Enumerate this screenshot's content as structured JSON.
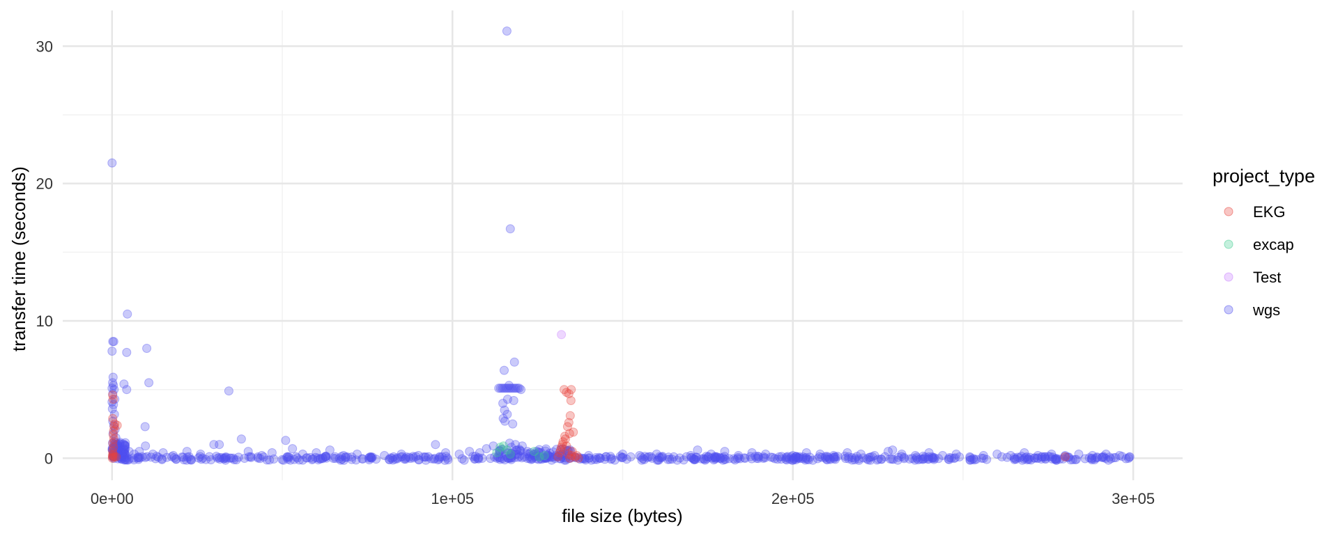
{
  "colors": {
    "EKG": "#E8423A",
    "excap": "#3DCC8E",
    "Test": "#C77CFF",
    "wgs": "#4F4FF0",
    "grid_major": "#E6E6E6",
    "grid_minor": "#F2F2F2",
    "text": "#333333"
  },
  "chart_data": {
    "type": "scatter",
    "xlabel": "file size (bytes)",
    "ylabel": "transfer time (seconds)",
    "xlim": [
      -14500,
      314500
    ],
    "ylim": [
      -1.6,
      32.6
    ],
    "x_ticks": [
      {
        "value": 0,
        "label": "0e+00"
      },
      {
        "value": 100000,
        "label": "1e+05"
      },
      {
        "value": 200000,
        "label": "2e+05"
      },
      {
        "value": 300000,
        "label": "3e+05"
      }
    ],
    "y_ticks": [
      {
        "value": 0,
        "label": "0"
      },
      {
        "value": 10,
        "label": "10"
      },
      {
        "value": 20,
        "label": "20"
      },
      {
        "value": 30,
        "label": "30"
      }
    ],
    "x_minor": [
      50000,
      150000,
      250000
    ],
    "y_minor": [
      5,
      15,
      25
    ],
    "grid": true,
    "legend": {
      "title": "project_type",
      "position": "right"
    },
    "series": [
      {
        "name": "EKG",
        "points": [
          [
            100,
            0.0
          ],
          [
            200,
            0.1
          ],
          [
            300,
            0.3
          ],
          [
            150,
            0.5
          ],
          [
            400,
            0.8
          ],
          [
            250,
            1.1
          ],
          [
            500,
            1.4
          ],
          [
            350,
            1.7
          ],
          [
            450,
            2.0
          ],
          [
            600,
            2.3
          ],
          [
            800,
            2.5
          ],
          [
            200,
            2.9
          ],
          [
            100,
            0.2
          ],
          [
            700,
            0.1
          ],
          [
            1200,
            0.1
          ],
          [
            1500,
            2.4
          ],
          [
            300,
            4.3
          ],
          [
            150,
            4.6
          ],
          [
            131000,
            0.1
          ],
          [
            131500,
            0.4
          ],
          [
            132000,
            0.8
          ],
          [
            132500,
            1.2
          ],
          [
            133000,
            1.6
          ],
          [
            133500,
            0.9
          ],
          [
            134000,
            0.3
          ],
          [
            134500,
            0.0
          ],
          [
            135000,
            0.2
          ],
          [
            135500,
            1.9
          ],
          [
            133800,
            2.3
          ],
          [
            134200,
            2.6
          ],
          [
            134600,
            3.1
          ],
          [
            132800,
            5.0
          ],
          [
            133500,
            4.8
          ],
          [
            134200,
            4.7
          ],
          [
            134900,
            5.0
          ],
          [
            134800,
            4.2
          ],
          [
            131800,
            0.6
          ],
          [
            132300,
            1.0
          ],
          [
            133200,
            1.4
          ],
          [
            134400,
            1.8
          ],
          [
            135200,
            0.5
          ],
          [
            136000,
            0.1
          ],
          [
            136500,
            0.2
          ],
          [
            137000,
            0.0
          ],
          [
            280000,
            0.1
          ]
        ]
      },
      {
        "name": "excap",
        "points": [
          [
            114000,
            0.8
          ],
          [
            115000,
            0.9
          ],
          [
            116000,
            0.6
          ],
          [
            117000,
            0.3
          ],
          [
            124000,
            0.5
          ],
          [
            125500,
            0.1
          ],
          [
            127000,
            0.2
          ],
          [
            113000,
            0.4
          ]
        ]
      },
      {
        "name": "Test",
        "points": [
          [
            132000,
            9.0
          ]
        ]
      },
      {
        "name": "wgs",
        "points": [
          [
            0,
            21.5
          ],
          [
            200,
            8.5
          ],
          [
            500,
            8.5
          ],
          [
            0,
            7.8
          ],
          [
            300,
            5.9
          ],
          [
            150,
            5.5
          ],
          [
            400,
            5.3
          ],
          [
            0,
            5.1
          ],
          [
            600,
            5.0
          ],
          [
            200,
            4.7
          ],
          [
            800,
            4.3
          ],
          [
            0,
            4.1
          ],
          [
            400,
            3.9
          ],
          [
            100,
            3.6
          ],
          [
            700,
            3.2
          ],
          [
            200,
            2.7
          ],
          [
            500,
            2.4
          ],
          [
            900,
            2.1
          ],
          [
            300,
            1.8
          ],
          [
            1100,
            1.5
          ],
          [
            600,
            1.2
          ],
          [
            1500,
            1.0
          ],
          [
            2200,
            0.8
          ],
          [
            2800,
            0.6
          ],
          [
            3300,
            0.4
          ],
          [
            3500,
            5.4
          ],
          [
            4300,
            5.0
          ],
          [
            4500,
            10.5
          ],
          [
            4300,
            7.7
          ],
          [
            9800,
            0.9
          ],
          [
            10200,
            8.0
          ],
          [
            10800,
            5.5
          ],
          [
            9700,
            2.3
          ],
          [
            3800,
            0.9
          ],
          [
            5000,
            0.5
          ],
          [
            6500,
            0.3
          ],
          [
            8000,
            0.5
          ],
          [
            12000,
            0.3
          ],
          [
            15000,
            0.4
          ],
          [
            18000,
            0.2
          ],
          [
            22000,
            0.5
          ],
          [
            26000,
            0.3
          ],
          [
            29900,
            1.0
          ],
          [
            31500,
            1.0
          ],
          [
            34300,
            4.9
          ],
          [
            38000,
            1.4
          ],
          [
            40000,
            0.5
          ],
          [
            44000,
            0.2
          ],
          [
            47000,
            0.4
          ],
          [
            51000,
            1.3
          ],
          [
            53000,
            0.7
          ],
          [
            56000,
            0.3
          ],
          [
            60000,
            0.4
          ],
          [
            64000,
            0.6
          ],
          [
            68000,
            0.2
          ],
          [
            72000,
            0.3
          ],
          [
            76000,
            0.1
          ],
          [
            80000,
            0.2
          ],
          [
            85000,
            0.3
          ],
          [
            90000,
            0.2
          ],
          [
            95000,
            1.0
          ],
          [
            98000,
            0.4
          ],
          [
            102000,
            0.3
          ],
          [
            105000,
            0.5
          ],
          [
            108000,
            0.4
          ],
          [
            110000,
            0.7
          ],
          [
            112000,
            0.9
          ],
          [
            116000,
            31.1
          ],
          [
            117000,
            16.7
          ],
          [
            115200,
            6.4
          ],
          [
            118200,
            7.0
          ],
          [
            116600,
            5.3
          ],
          [
            113600,
            5.1
          ],
          [
            114100,
            5.1
          ],
          [
            114600,
            5.1
          ],
          [
            115100,
            5.1
          ],
          [
            115600,
            5.1
          ],
          [
            116100,
            5.1
          ],
          [
            116600,
            5.1
          ],
          [
            117100,
            5.1
          ],
          [
            117600,
            5.1
          ],
          [
            118100,
            5.1
          ],
          [
            118600,
            5.1
          ],
          [
            119100,
            5.1
          ],
          [
            119600,
            5.1
          ],
          [
            120100,
            5.0
          ],
          [
            114800,
            4.0
          ],
          [
            116200,
            4.3
          ],
          [
            118000,
            4.2
          ],
          [
            115300,
            3.5
          ],
          [
            116100,
            3.2
          ],
          [
            114900,
            2.9
          ],
          [
            115400,
            2.7
          ],
          [
            117700,
            2.5
          ],
          [
            116800,
            1.1
          ],
          [
            118500,
            1.0
          ],
          [
            117300,
            0.8
          ],
          [
            119000,
            0.6
          ],
          [
            120500,
            0.9
          ],
          [
            122000,
            0.5
          ],
          [
            124000,
            0.3
          ],
          [
            126000,
            0.4
          ],
          [
            128000,
            0.2
          ],
          [
            130000,
            0.1
          ],
          [
            140000,
            0.2
          ],
          [
            145000,
            0.1
          ],
          [
            150000,
            0.3
          ],
          [
            155000,
            0.2
          ],
          [
            160000,
            0.3
          ],
          [
            165000,
            0.1
          ],
          [
            170000,
            0.2
          ],
          [
            172000,
            0.6
          ],
          [
            176000,
            0.3
          ],
          [
            180000,
            0.5
          ],
          [
            184000,
            0.2
          ],
          [
            188000,
            0.4
          ],
          [
            192000,
            0.3
          ],
          [
            196000,
            0.1
          ],
          [
            200000,
            0.2
          ],
          [
            204000,
            0.4
          ],
          [
            208000,
            0.3
          ],
          [
            212000,
            0.2
          ],
          [
            216000,
            0.4
          ],
          [
            220000,
            0.3
          ],
          [
            224000,
            0.2
          ],
          [
            228000,
            0.5
          ],
          [
            229300,
            0.6
          ],
          [
            232000,
            0.3
          ],
          [
            236000,
            0.2
          ],
          [
            240000,
            0.4
          ],
          [
            244000,
            0.2
          ],
          [
            248000,
            0.3
          ],
          [
            252000,
            0.1
          ],
          [
            256000,
            0.2
          ],
          [
            260000,
            0.3
          ],
          [
            264000,
            0.2
          ],
          [
            268000,
            0.4
          ],
          [
            272000,
            0.2
          ],
          [
            276000,
            0.3
          ],
          [
            280000,
            0.2
          ],
          [
            284000,
            0.3
          ],
          [
            288000,
            0.2
          ],
          [
            292000,
            0.3
          ],
          [
            296000,
            0.2
          ],
          [
            299000,
            0.1
          ]
        ],
        "dense_bands": [
          {
            "x": [
              0,
              300000
            ],
            "y": [
              -0.15,
              0.15
            ],
            "count": 520
          },
          {
            "x": [
              0,
              4000
            ],
            "y": [
              0.0,
              1.2
            ],
            "count": 60
          },
          {
            "x": [
              113000,
              136000
            ],
            "y": [
              0.0,
              0.7
            ],
            "count": 70
          }
        ]
      }
    ]
  }
}
